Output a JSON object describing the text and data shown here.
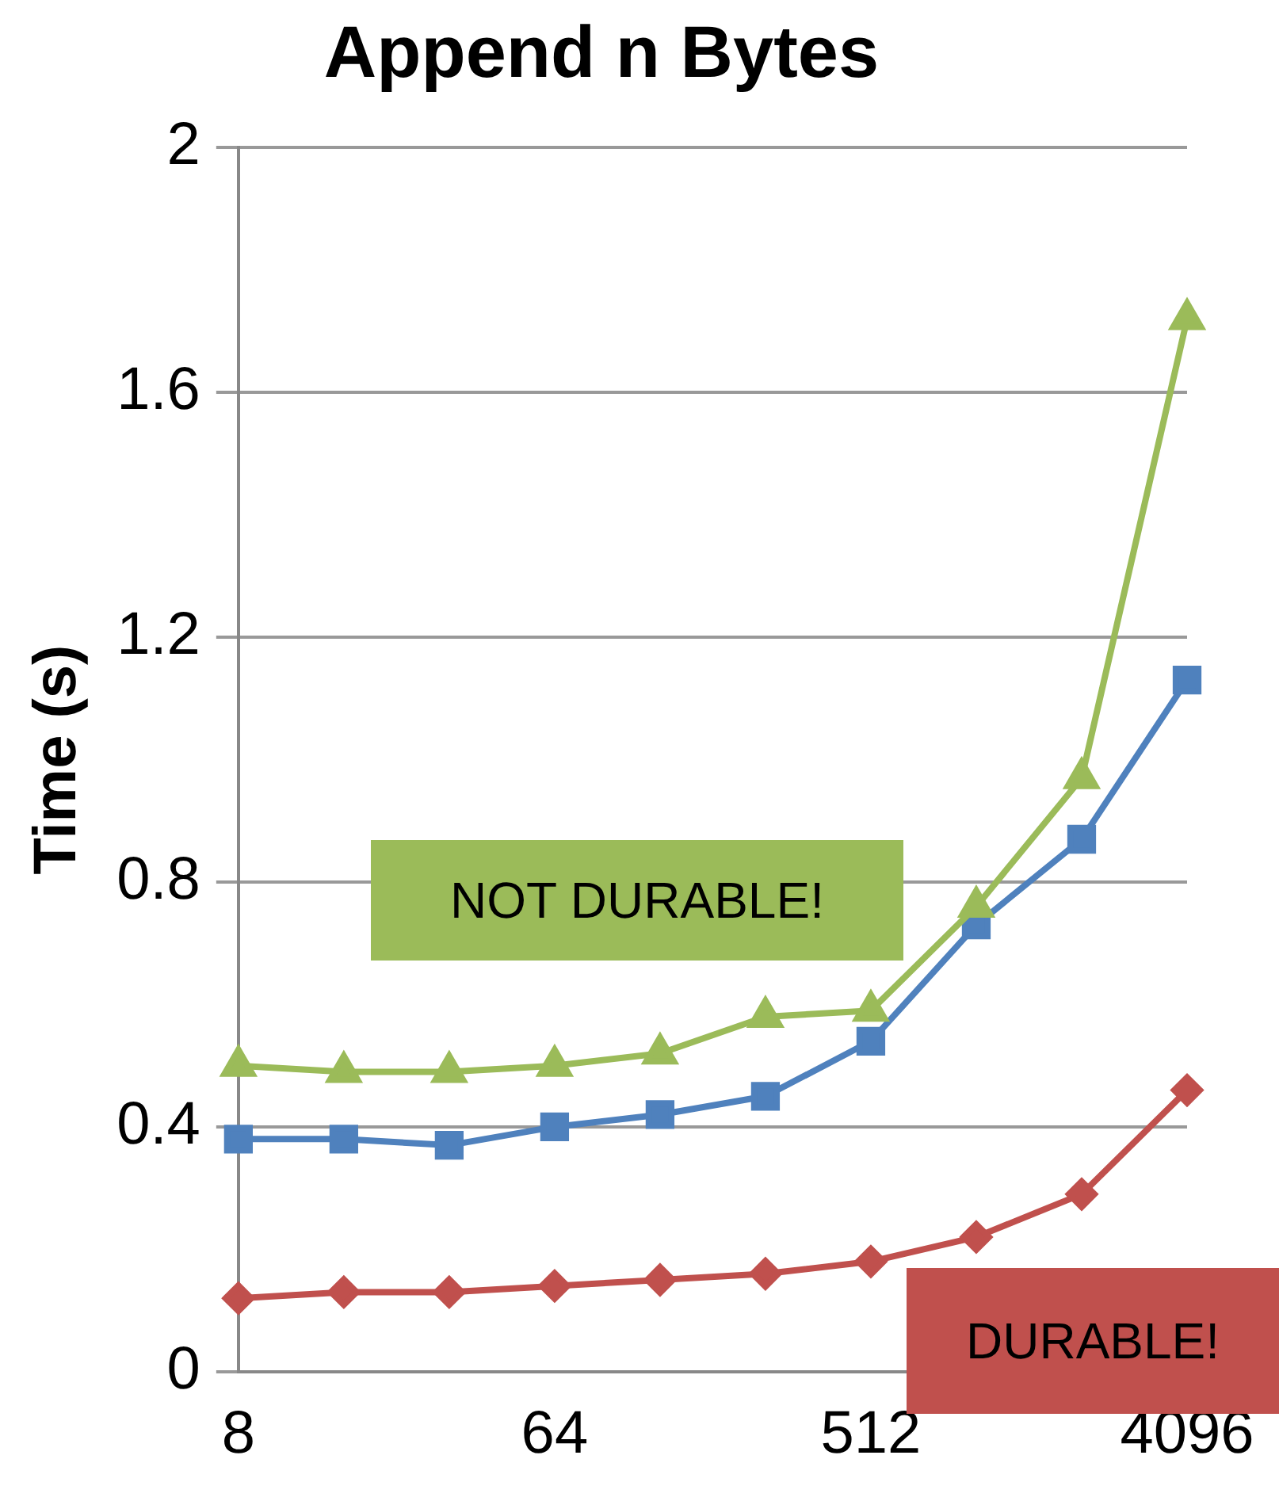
{
  "chart_data": {
    "type": "line",
    "title": "Append n Bytes",
    "ylabel": "Time (s)",
    "categories": [
      "8",
      null,
      null,
      "64",
      null,
      null,
      "512",
      null,
      null,
      "4096"
    ],
    "ylim": [
      0,
      2
    ],
    "yticks": [
      0,
      0.4,
      0.8,
      1.2,
      1.6,
      2
    ],
    "grid": "y",
    "legend": false,
    "series": [
      {
        "name": "NOT DURABLE!",
        "color": "#9bbb59",
        "marker": "triangle",
        "values": [
          0.5,
          0.49,
          0.49,
          0.5,
          0.52,
          0.58,
          0.59,
          0.76,
          0.97,
          1.72
        ]
      },
      {
        "color": "#4f81bd",
        "marker": "square",
        "values": [
          0.38,
          0.38,
          0.37,
          0.4,
          0.42,
          0.45,
          0.54,
          0.73,
          0.87,
          1.13
        ]
      },
      {
        "name": "DURABLE!",
        "color": "#c0504d",
        "marker": "diamond",
        "values": [
          0.12,
          0.13,
          0.13,
          0.14,
          0.15,
          0.16,
          0.18,
          0.22,
          0.29,
          0.46
        ]
      }
    ]
  }
}
